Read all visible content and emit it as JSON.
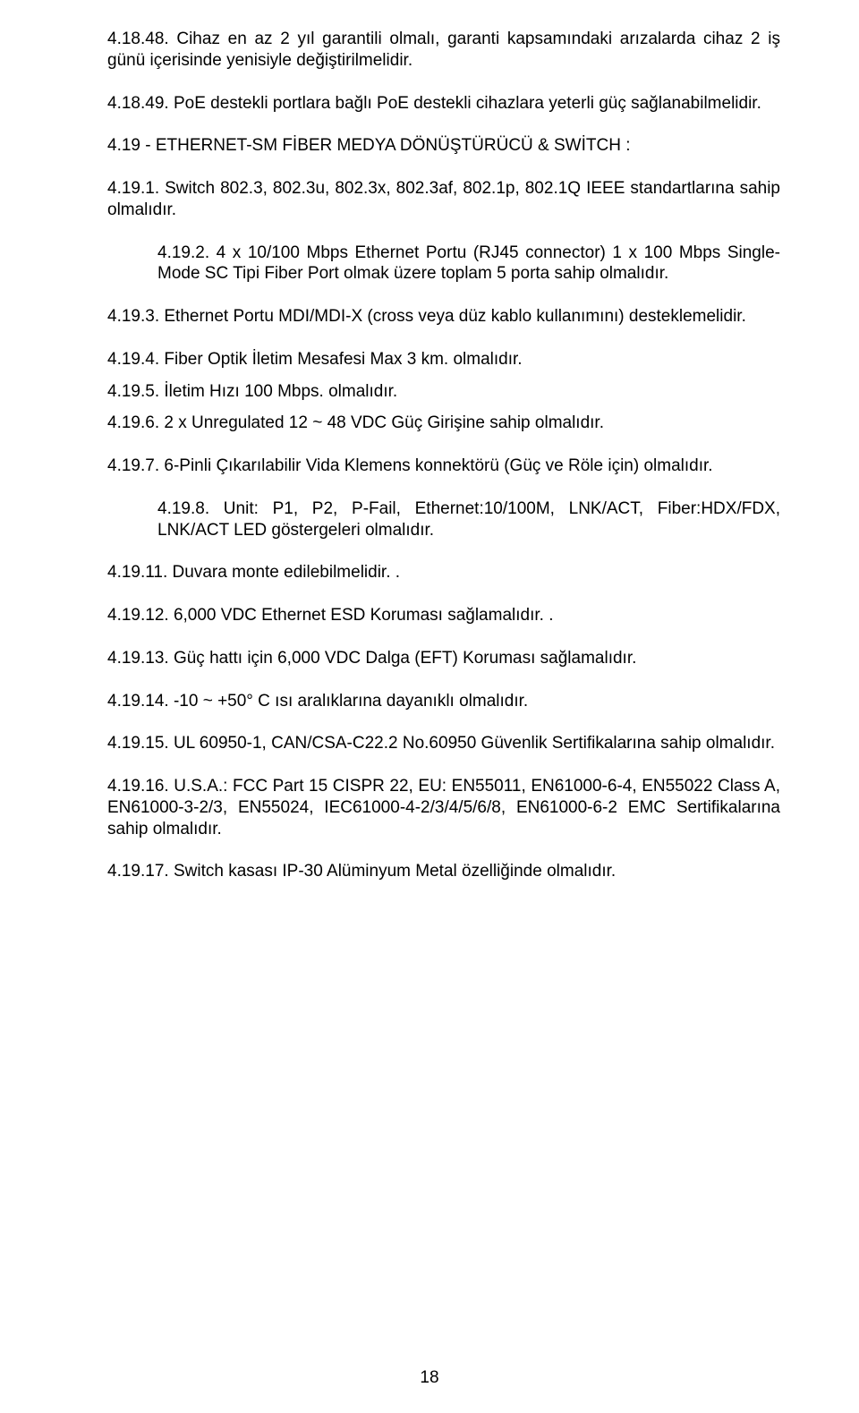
{
  "p1": "4.18.48. Cihaz en az 2 yıl garantili olmalı, garanti kapsamındaki arızalarda cihaz 2 iş günü içerisinde yenisiyle değiştirilmelidir.",
  "p2": "4.18.49. PoE destekli portlara bağlı PoE destekli cihazlara yeterli güç sağlanabilmelidir.",
  "heading": "4.19 - ETHERNET-SM FİBER MEDYA DÖNÜŞTÜRÜCÜ & SWİTCH :",
  "p3": "4.19.1. Switch 802.3, 802.3u, 802.3x, 802.3af, 802.1p, 802.1Q IEEE standartlarına sahip olmalıdır.",
  "p4": "4.19.2. 4 x 10/100 Mbps Ethernet Portu (RJ45 connector) 1 x 100 Mbps Single-Mode SC Tipi Fiber Port olmak üzere toplam 5 porta sahip olmalıdır.",
  "p5": "4.19.3. Ethernet Portu MDI/MDI-X (cross veya düz kablo kullanımını) desteklemelidir.",
  "p6": "4.19.4.    Fiber Optik İletim Mesafesi Max 3 km. olmalıdır.",
  "p7": "4.19.5.    İletim Hızı 100 Mbps. olmalıdır.",
  "p8": "4.19.6.    2 x Unregulated  12 ~ 48 VDC Güç Girişine sahip olmalıdır.",
  "p9": "4.19.7. 6-Pinli Çıkarılabilir Vida Klemens konnektörü (Güç ve Röle için) olmalıdır.",
  "p10": "4.19.8. Unit: P1, P2, P-Fail, Ethernet:10/100M, LNK/ACT, Fiber:HDX/FDX, LNK/ACT LED  göstergeleri olmalıdır.",
  "p11": "4.19.11. Duvara monte edilebilmelidir. .",
  "p12": "4.19.12. 6,000 VDC Ethernet ESD Koruması sağlamalıdır. .",
  "p13": "4.19.13. Güç hattı için 6,000 VDC Dalga  (EFT) Koruması  sağlamalıdır.",
  "p14": "4.19.14. -10 ~ +50° C ısı aralıklarına dayanıklı olmalıdır.",
  "p15": "4.19.15. UL 60950-1, CAN/CSA-C22.2 No.60950 Güvenlik Sertifikalarına sahip olmalıdır.",
  "p16": "4.19.16. U.S.A.: FCC Part 15 CISPR 22,  EU: EN55011, EN61000-6-4, EN55022 Class A, EN61000-3-2/3, EN55024, IEC61000-4-2/3/4/5/6/8, EN61000-6-2 EMC Sertifikalarına sahip olmalıdır.",
  "p17": "4.19.17. Switch kasası IP-30 Alüminyum Metal özelliğinde olmalıdır.",
  "pageNumber": "18"
}
